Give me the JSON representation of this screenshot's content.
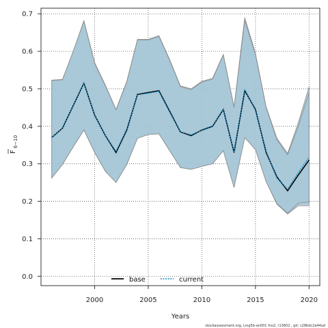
{
  "chart_data": {
    "type": "line",
    "xlabel": "Years",
    "ylabel_main": "F",
    "ylabel_sub": "6−10",
    "xlim": [
      1995,
      2021
    ],
    "ylim": [
      -0.025,
      0.715
    ],
    "xticks": [
      2000,
      2005,
      2010,
      2015,
      2020
    ],
    "yticks": [
      0.0,
      0.1,
      0.2,
      0.3,
      0.4,
      0.5,
      0.6,
      0.7
    ],
    "ytick_labels": [
      "0.0",
      "0.1",
      "0.2",
      "0.3",
      "0.4",
      "0.5",
      "0.6",
      "0.7"
    ],
    "grid": true,
    "legend_position": "bottom-left",
    "band_color": "#a3c4d6",
    "band_edge_color": "#8a8a8a",
    "x": [
      1996,
      1997,
      1998,
      1999,
      2000,
      2001,
      2002,
      2003,
      2004,
      2005,
      2006,
      2007,
      2008,
      2009,
      2010,
      2011,
      2012,
      2013,
      2014,
      2015,
      2016,
      2017,
      2018,
      2019,
      2020
    ],
    "series": [
      {
        "name": "base",
        "style": "solid",
        "color": "#000000",
        "values": [
          0.37,
          0.395,
          0.455,
          0.515,
          0.43,
          0.375,
          0.33,
          0.39,
          0.485,
          0.49,
          0.495,
          0.44,
          0.385,
          0.375,
          0.39,
          0.4,
          0.445,
          0.33,
          0.495,
          0.445,
          0.33,
          0.265,
          0.228,
          0.27,
          0.31
        ],
        "upper": [
          0.523,
          0.525,
          0.6,
          0.682,
          0.57,
          0.51,
          0.445,
          0.52,
          0.632,
          0.632,
          0.642,
          0.578,
          0.508,
          0.5,
          0.52,
          0.528,
          0.592,
          0.452,
          0.69,
          0.595,
          0.452,
          0.368,
          0.328,
          0.41,
          0.505
        ],
        "lower": [
          0.262,
          0.298,
          0.345,
          0.39,
          0.33,
          0.28,
          0.25,
          0.298,
          0.368,
          0.378,
          0.38,
          0.335,
          0.29,
          0.285,
          0.293,
          0.3,
          0.335,
          0.237,
          0.37,
          0.338,
          0.252,
          0.192,
          0.166,
          0.188,
          0.188
        ]
      },
      {
        "name": "current",
        "style": "dotted",
        "color": "#1a8fc7",
        "values": [
          0.37,
          0.395,
          0.455,
          0.515,
          0.43,
          0.375,
          0.333,
          0.392,
          0.484,
          0.488,
          0.493,
          0.438,
          0.385,
          0.377,
          0.389,
          0.399,
          0.444,
          0.331,
          0.498,
          0.443,
          0.333,
          0.262,
          0.232,
          0.277,
          0.318
        ],
        "upper": [
          0.522,
          0.524,
          0.6,
          0.68,
          0.568,
          0.508,
          0.444,
          0.518,
          0.63,
          0.63,
          0.64,
          0.576,
          0.506,
          0.498,
          0.518,
          0.526,
          0.59,
          0.45,
          0.682,
          0.592,
          0.45,
          0.364,
          0.324,
          0.4,
          0.49
        ],
        "lower": [
          0.262,
          0.298,
          0.345,
          0.39,
          0.33,
          0.28,
          0.25,
          0.298,
          0.368,
          0.378,
          0.38,
          0.335,
          0.29,
          0.285,
          0.293,
          0.3,
          0.335,
          0.237,
          0.37,
          0.338,
          0.252,
          0.194,
          0.168,
          0.195,
          0.198
        ]
      }
    ],
    "footnote": "stockassessment.org, Ling5b-an001 fno2, r13602 , git: c28bdc2a44ad"
  }
}
